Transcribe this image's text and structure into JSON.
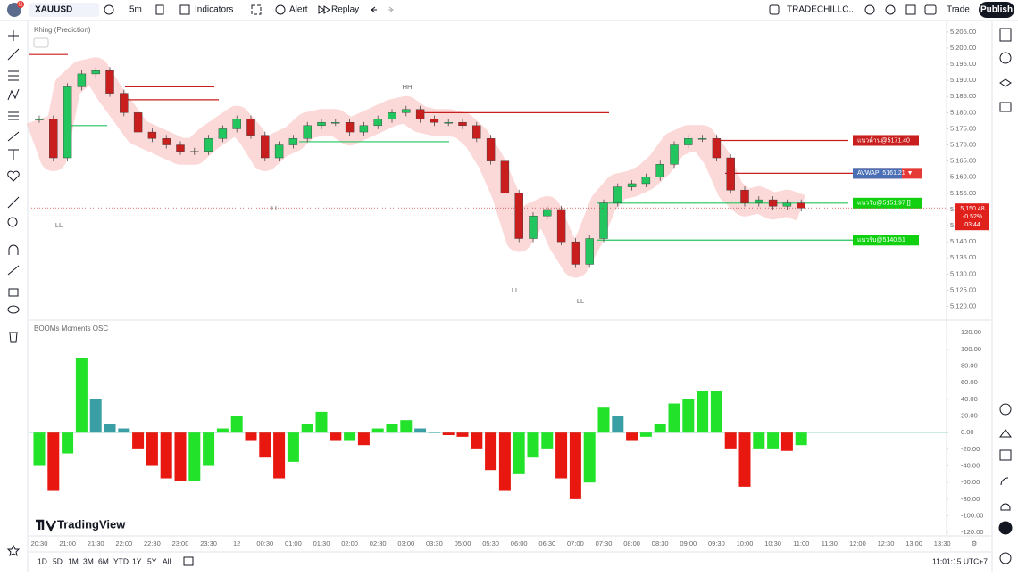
{
  "toolbar": {
    "badge": "11",
    "symbol": "XAUUSD",
    "interval": "5m",
    "indicators": "Indicators",
    "alert": "Alert",
    "replay": "Replay",
    "layout": "TRADECHILLC...",
    "trade": "Trade",
    "publish": "Publish"
  },
  "chart_data": [
    {
      "type": "candlestick",
      "title": "Khing (Prediction)",
      "values": [
        5178,
        5166,
        5188,
        5192,
        5193,
        5186,
        5180,
        5174,
        5172,
        5170,
        5168,
        5168,
        5172,
        5175,
        5178,
        5173,
        5166,
        5170,
        5172,
        5176,
        5177,
        5177,
        5174,
        5176,
        5178,
        5180,
        5181,
        5178,
        5177,
        5177,
        5176,
        5172,
        5165,
        5155,
        5141,
        5148,
        5150,
        5140,
        5133,
        5141,
        5152,
        5157,
        5158,
        5160,
        5164,
        5170,
        5172,
        5172,
        5166,
        5156,
        5152,
        5153,
        5151,
        5152,
        5150.48
      ],
      "up_color": "#22c55e",
      "down_color": "#c81e1e",
      "ribbon_color": "#f7a1a1",
      "ylim": [
        5116,
        5208
      ],
      "yticks": [
        {
          "value": 5205,
          "label": "5,205.00"
        },
        {
          "value": 5200,
          "label": "5,200.00"
        },
        {
          "value": 5195,
          "label": "5,195.00"
        },
        {
          "value": 5190,
          "label": "5,190.00"
        },
        {
          "value": 5185,
          "label": "5,185.00"
        },
        {
          "value": 5180,
          "label": "5,180.00"
        },
        {
          "value": 5175,
          "label": "5,175.00"
        },
        {
          "value": 5170,
          "label": "5,170.00"
        },
        {
          "value": 5165,
          "label": "5,165.00"
        },
        {
          "value": 5160,
          "label": "5,160.00"
        },
        {
          "value": 5155,
          "label": "5,155.00"
        },
        {
          "value": 5150,
          "label": "5,150.00"
        },
        {
          "value": 5145,
          "label": "5,145.00"
        },
        {
          "value": 5140,
          "label": "5,140.00"
        },
        {
          "value": 5135,
          "label": "5,135.00"
        },
        {
          "value": 5130,
          "label": "5,130.00"
        },
        {
          "value": 5125,
          "label": "5,125.00"
        },
        {
          "value": 5120,
          "label": "5,120.00"
        }
      ],
      "last_price": {
        "label": "5,150.48",
        "change": "-0.52%",
        "countdown": "03:44"
      },
      "annotations": [
        "HH",
        "LL",
        "LL",
        "LL",
        "LL"
      ],
      "levels": [
        {
          "value": 5198,
          "color": "#c81e1e"
        },
        {
          "value": 5188,
          "color": "#c81e1e"
        },
        {
          "value": 5184,
          "color": "#c81e1e"
        },
        {
          "value": 5180,
          "color": "#c81e1e"
        },
        {
          "value": 5176,
          "color": "#22c55e"
        },
        {
          "value": 5171,
          "color": "#22c55e"
        },
        {
          "value": 5171.4,
          "color": "#c81e1e"
        },
        {
          "value": 5161.21,
          "color": "#c81e1e"
        },
        {
          "value": 5151.97,
          "color": "#22c55e"
        },
        {
          "value": 5140.51,
          "color": "#22c55e"
        }
      ],
      "level_labels": [
        "แนวต้าน@5171.40",
        "AVWAP: 5161.21 ▼",
        "แนวรับ@5151.97 []",
        "แนวรับ@5140.51"
      ]
    },
    {
      "type": "bar",
      "title": "BOOMs Moments OSC",
      "values": [
        -40,
        -70,
        -25,
        90,
        40,
        10,
        5,
        -20,
        -40,
        -55,
        -58,
        -58,
        -40,
        5,
        20,
        -10,
        -30,
        -55,
        -35,
        10,
        25,
        -10,
        -10,
        -15,
        5,
        10,
        15,
        5,
        0,
        -3,
        -5,
        -20,
        -45,
        -70,
        -50,
        -30,
        -20,
        -55,
        -80,
        -60,
        30,
        20,
        -10,
        -5,
        10,
        35,
        40,
        50,
        50,
        -20,
        -65,
        -20,
        -20,
        -22,
        -15
      ],
      "rise_up_color": "#22e32a",
      "fall_up_color": "#3a9ea5",
      "fall_down_color": "#e8170f",
      "rise_down_color": "#22e32a",
      "ylim": [
        -123,
        132
      ],
      "yticks": [
        {
          "value": 120,
          "label": "120.00"
        },
        {
          "value": 100,
          "label": "100.00"
        },
        {
          "value": 80,
          "label": "80.00"
        },
        {
          "value": 60,
          "label": "60.00"
        },
        {
          "value": 40,
          "label": "40.00"
        },
        {
          "value": 20,
          "label": "20.00"
        },
        {
          "value": 0,
          "label": "0.00"
        },
        {
          "value": -20,
          "label": "-20.00"
        },
        {
          "value": -40,
          "label": "-40.00"
        },
        {
          "value": -60,
          "label": "-60.00"
        },
        {
          "value": -80,
          "label": "-80.00"
        },
        {
          "value": -100,
          "label": "-100.00"
        },
        {
          "value": -120,
          "label": "-120.00"
        }
      ]
    }
  ],
  "time_axis": [
    "20:30",
    "21:00",
    "21:30",
    "22:00",
    "22:30",
    "23:00",
    "23:30",
    "12",
    "00:30",
    "01:00",
    "01:30",
    "02:00",
    "02:30",
    "03:00",
    "03:30",
    "05:00",
    "05:30",
    "06:00",
    "06:30",
    "07:00",
    "07:30",
    "08:00",
    "08:30",
    "09:00",
    "09:30",
    "10:00",
    "10:30",
    "11:00",
    "11:30",
    "12:00",
    "12:30",
    "13:00",
    "13:30"
  ],
  "bottom_bar": {
    "ranges": [
      "1D",
      "5D",
      "1M",
      "3M",
      "6M",
      "YTD",
      "1Y",
      "5Y",
      "All"
    ],
    "clock": "11:01:15 UTC+7"
  },
  "watermark": "TradingView"
}
